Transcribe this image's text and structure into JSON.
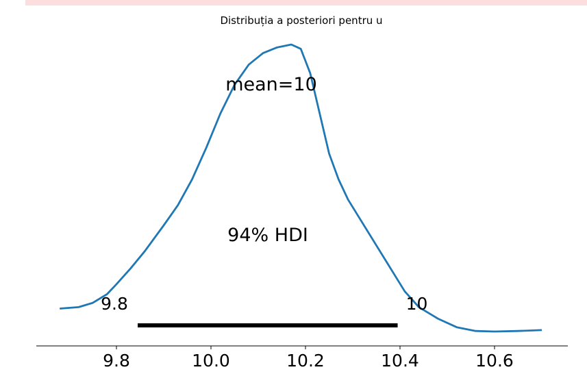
{
  "top_strip_color": "#fddede",
  "chart_data": {
    "type": "line",
    "title": "Distribuția a posteriori pentru u",
    "xlabel": "",
    "ylabel": "",
    "xlim": [
      9.62,
      10.78
    ],
    "ylim": [
      0,
      1.0
    ],
    "x_ticks": [
      9.8,
      10.0,
      10.2,
      10.4,
      10.6
    ],
    "x_tick_labels": [
      "9.8",
      "10.0",
      "10.2",
      "10.4",
      "10.6"
    ],
    "grid": false,
    "density_color": "#1f77b4",
    "series": [
      {
        "x": [
          9.68,
          9.72,
          9.75,
          9.78,
          9.8,
          9.83,
          9.86,
          9.9,
          9.93,
          9.96,
          9.99,
          10.02,
          10.05,
          10.08,
          10.11,
          10.14,
          10.17,
          10.19,
          10.21,
          10.23,
          10.25,
          10.27,
          10.29,
          10.32,
          10.35,
          10.38,
          10.41,
          10.44,
          10.48,
          10.52,
          10.56,
          10.6,
          10.65,
          10.7
        ],
        "y": [
          0.08,
          0.085,
          0.1,
          0.13,
          0.165,
          0.22,
          0.28,
          0.37,
          0.44,
          0.53,
          0.64,
          0.76,
          0.86,
          0.93,
          0.97,
          0.99,
          1.0,
          0.985,
          0.9,
          0.76,
          0.62,
          0.53,
          0.46,
          0.38,
          0.3,
          0.22,
          0.14,
          0.085,
          0.045,
          0.015,
          0.002,
          0.0,
          0.002,
          0.005
        ]
      }
    ],
    "hdi": {
      "label": "94% HDI",
      "low": 9.845,
      "high": 10.395,
      "low_label": "9.8",
      "high_label": "10",
      "color": "#000000"
    },
    "mean_label": "mean=10"
  }
}
